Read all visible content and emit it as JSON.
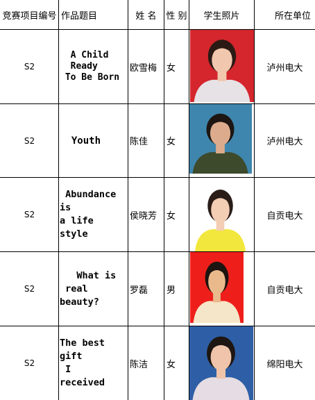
{
  "headers": {
    "code": "竞赛项目编号",
    "title": "作品题目",
    "name": "姓 名",
    "gender": "性 别",
    "photo": "学生照片",
    "unit": "所在单位"
  },
  "rows": [
    {
      "code": "S2",
      "title": "  A Child\n  Ready\n To Be Born",
      "name": "欧雪梅",
      "gender": "女",
      "unit": "泸州电大",
      "photo": {
        "bg": "#d4262c",
        "shirt": "#e7e2e6",
        "hair": "#2b1a14",
        "skin": "#f1c7ad"
      }
    },
    {
      "code": "S2",
      "title": "  Youth",
      "name": "陈佳",
      "gender": "女",
      "unit": "泸州电大",
      "photo": {
        "bg": "#3e86ad",
        "shirt": "#3d4a2c",
        "hair": "#1d1612",
        "skin": "#dcab8d"
      }
    },
    {
      "code": "S2",
      "title": " Abundance\nis\na life\nstyle",
      "name": "侯晓芳",
      "gender": "女",
      "unit": "自贡电大",
      "photo": {
        "bg": "#ffffff",
        "shirt": "#f2e73c",
        "hair": "#2a1d18",
        "skin": "#f3cdb4"
      }
    },
    {
      "code": "S2",
      "title": "   What is\n real\nbeauty?",
      "name": "罗磊",
      "gender": "男",
      "unit": "自贡电大",
      "photo": {
        "bg": "#ee1f1b",
        "shirt": "#f6e6c9",
        "hair": "#1c1410",
        "skin": "#e9b98c"
      }
    },
    {
      "code": "S2",
      "title": "The best\ngift\n I\nreceived",
      "name": "陈洁",
      "gender": "女",
      "unit": "绵阳电大",
      "photo": {
        "bg": "#2e5fa6",
        "shirt": "#e5dde3",
        "hair": "#1e1612",
        "skin": "#efc4aa"
      }
    }
  ]
}
